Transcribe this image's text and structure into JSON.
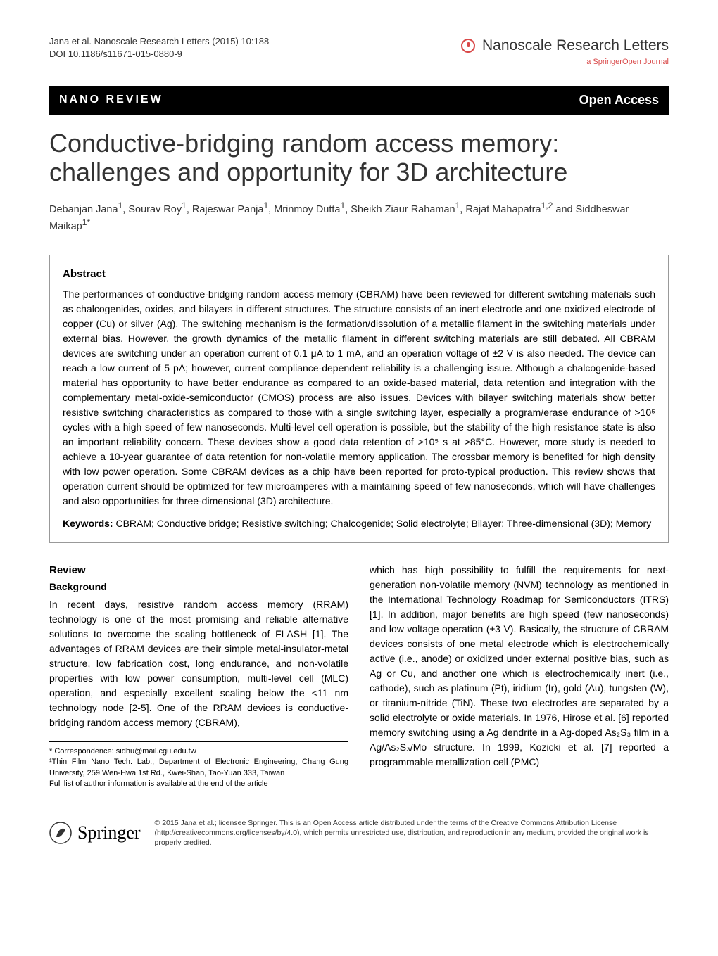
{
  "header": {
    "citation_line1": "Jana et al. Nanoscale Research Letters  (2015) 10:188",
    "citation_line2": "DOI 10.1186/s11671-015-0880-9",
    "journal_name": "Nanoscale Research Letters",
    "journal_sub": "a SpringerOpen Journal"
  },
  "bar": {
    "category": "NANO REVIEW",
    "access": "Open Access"
  },
  "title": "Conductive-bridging random access memory: challenges and opportunity for 3D architecture",
  "authors_html": "Debanjan Jana<sup>1</sup>, Sourav Roy<sup>1</sup>, Rajeswar Panja<sup>1</sup>, Mrinmoy Dutta<sup>1</sup>, Sheikh Ziaur Rahaman<sup>1</sup>, Rajat Mahapatra<sup>1,2</sup> and Siddheswar Maikap<sup>1*</sup>",
  "abstract": {
    "heading": "Abstract",
    "text": "The performances of conductive-bridging random access memory (CBRAM) have been reviewed for different switching materials such as chalcogenides, oxides, and bilayers in different structures. The structure consists of an inert electrode and one oxidized electrode of copper (Cu) or silver (Ag). The switching mechanism is the formation/dissolution of a metallic filament in the switching materials under external bias. However, the growth dynamics of the metallic filament in different switching materials are still debated. All CBRAM devices are switching under an operation current of 0.1 μA to 1 mA, and an operation voltage of ±2 V is also needed. The device can reach a low current of 5 pA; however, current compliance-dependent reliability is a challenging issue. Although a chalcogenide-based material has opportunity to have better endurance as compared to an oxide-based material, data retention and integration with the complementary metal-oxide-semiconductor (CMOS) process are also issues. Devices with bilayer switching materials show better resistive switching characteristics as compared to those with a single switching layer, especially a program/erase endurance of >10⁵ cycles with a high speed of few nanoseconds. Multi-level cell operation is possible, but the stability of the high resistance state is also an important reliability concern. These devices show a good data retention of >10⁵ s at >85°C. However, more study is needed to achieve a 10-year guarantee of data retention for non-volatile memory application. The crossbar memory is benefited for high density with low power operation. Some CBRAM devices as a chip have been reported for proto-typical production. This review shows that operation current should be optimized for few microamperes with a maintaining speed of few nanoseconds, which will have challenges and also opportunities for three-dimensional (3D) architecture.",
    "keywords_label": "Keywords:",
    "keywords": " CBRAM; Conductive bridge; Resistive switching; Chalcogenide; Solid electrolyte; Bilayer; Three-dimensional (3D); Memory"
  },
  "body": {
    "review_heading": "Review",
    "background_heading": "Background",
    "col1_para": "In recent days, resistive random access memory (RRAM) technology is one of the most promising and reliable alternative solutions to overcome the scaling bottleneck of FLASH [1]. The advantages of RRAM devices are their simple metal-insulator-metal structure, low fabrication cost, long endurance, and non-volatile properties with low power consumption, multi-level cell (MLC) operation, and especially excellent scaling below the <11 nm technology node [2-5]. One of the RRAM devices is conductive-bridging random access memory (CBRAM),",
    "col2_para": "which has high possibility to fulfill the requirements for next-generation non-volatile memory (NVM) technology as mentioned in the International Technology Roadmap for Semiconductors (ITRS) [1]. In addition, major benefits are high speed (few nanoseconds) and low voltage operation (±3 V). Basically, the structure of CBRAM devices consists of one metal electrode which is electrochemically active (i.e., anode) or oxidized under external positive bias, such as Ag or Cu, and another one which is electrochemically inert (i.e., cathode), such as platinum (Pt), iridium (Ir), gold (Au), tungsten (W), or titanium-nitride (TiN). These two electrodes are separated by a solid electrolyte or oxide materials. In 1976, Hirose et al. [6] reported memory switching using a Ag dendrite in a Ag-doped As₂S₃ film in a Ag/As₂S₃/Mo structure. In 1999, Kozicki et al. [7] reported a programmable metallization cell (PMC)"
  },
  "correspondence": {
    "line1": "* Correspondence: sidhu@mail.cgu.edu.tw",
    "line2": "¹Thin Film Nano Tech. Lab., Department of Electronic Engineering, Chang Gung University, 259 Wen-Hwa 1st Rd., Kwei-Shan, Tao-Yuan 333, Taiwan",
    "line3": "Full list of author information is available at the end of the article"
  },
  "footer": {
    "springer": "Springer",
    "license": "© 2015 Jana et al.; licensee Springer. This is an Open Access article distributed under the terms of the Creative Commons Attribution License (http://creativecommons.org/licenses/by/4.0), which permits unrestricted use, distribution, and reproduction in any medium, provided the original work is properly credited."
  },
  "colors": {
    "bar_bg": "#000000",
    "bar_fg": "#ffffff",
    "accent_red": "#d94848",
    "border_gray": "#999999",
    "text": "#000000"
  }
}
